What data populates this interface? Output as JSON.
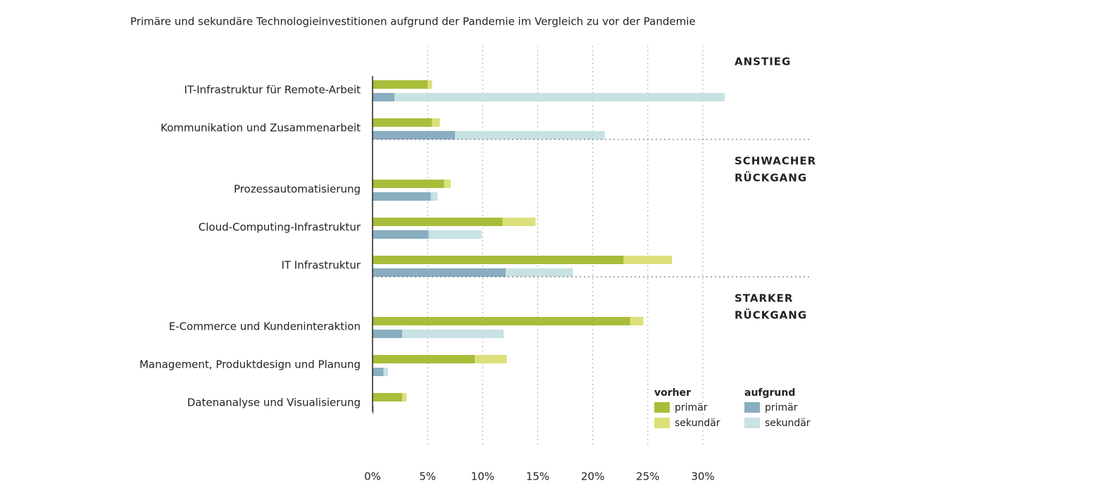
{
  "chart_data": {
    "type": "bar",
    "orientation": "horizontal",
    "title": "Primäre und sekundäre Technologieinvestitionen aufgrund der Pandemie im Vergleich zu vor der Pandemie",
    "groups": [
      {
        "label": [
          "ANSTIEG"
        ],
        "categories": [
          "IT-Infrastruktur für Remote-Arbeit",
          "Kommunikation und Zusammenarbeit"
        ]
      },
      {
        "label": [
          "SCHWACHER",
          "RÜCKGANG"
        ],
        "categories": [
          "Prozessautomatisierung",
          "Cloud-Computing-Infrastruktur",
          "IT Infrastruktur"
        ]
      },
      {
        "label": [
          "STARKER",
          "RÜCKGANG"
        ],
        "categories": [
          "E-Commerce und Kundeninteraktion",
          "Management, Produktdesign und Planung",
          "Datenanalyse und Visualisierung"
        ]
      }
    ],
    "series": [
      {
        "group": "vorher",
        "name": "primär",
        "color": "#a8bd3a",
        "values": [
          5.0,
          5.4,
          6.5,
          11.8,
          22.8,
          23.4,
          9.3,
          2.7
        ]
      },
      {
        "group": "vorher",
        "name": "sekundär",
        "color": "#dde07a",
        "values": [
          0.4,
          0.7,
          0.6,
          3.0,
          4.4,
          1.2,
          2.9,
          0.4
        ]
      },
      {
        "group": "aufgrund",
        "name": "primär",
        "color": "#89aebf",
        "values": [
          2.0,
          7.5,
          5.3,
          5.1,
          12.1,
          2.7,
          1.0,
          0.1
        ]
      },
      {
        "group": "aufgrund",
        "name": "sekundär",
        "color": "#c8e2e3",
        "values": [
          30.0,
          13.6,
          0.6,
          4.8,
          6.1,
          9.2,
          0.4,
          0.0
        ]
      }
    ],
    "xlim": [
      0,
      30
    ],
    "xticks": [
      {
        "value": 0,
        "label": "0%"
      },
      {
        "value": 5,
        "label": "5%"
      },
      {
        "value": 10,
        "label": "10%"
      },
      {
        "value": 15,
        "label": "15%"
      },
      {
        "value": 20,
        "label": "20%"
      },
      {
        "value": 25,
        "label": "25%"
      },
      {
        "value": 30,
        "label": "30%"
      }
    ],
    "grid": true
  }
}
